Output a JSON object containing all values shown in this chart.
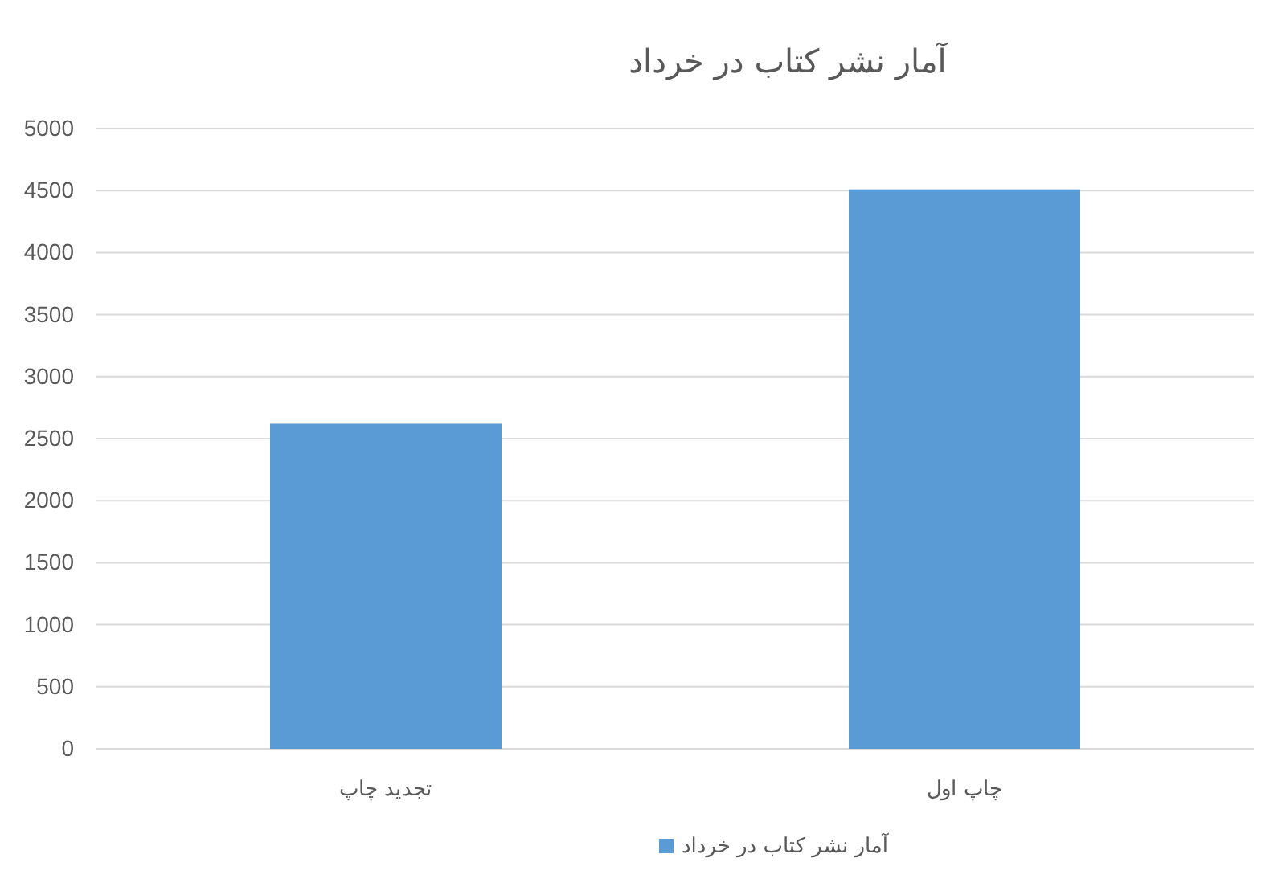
{
  "chart_data": {
    "type": "bar",
    "title": "آمار نشر کتاب در خرداد",
    "categories": [
      "تجدید چاپ",
      "چاپ اول"
    ],
    "series": [
      {
        "name": "آمار نشر کتاب در خرداد",
        "color": "#5b9bd5",
        "values": [
          2620,
          4510
        ]
      }
    ],
    "ylim": [
      0,
      5000
    ],
    "yticks": [
      0,
      500,
      1000,
      1500,
      2000,
      2500,
      3000,
      3500,
      4000,
      4500,
      5000
    ],
    "grid": "y",
    "legend": "bottom"
  }
}
